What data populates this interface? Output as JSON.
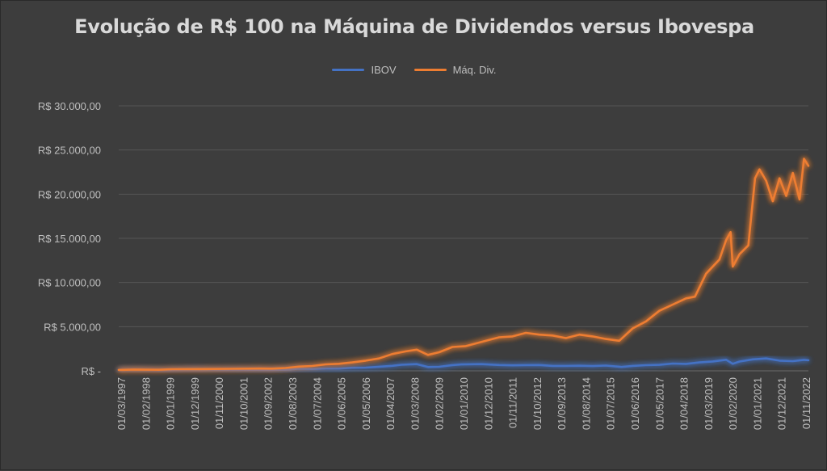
{
  "chart_data": {
    "type": "line",
    "title": "Evolução de R$ 100 na Máquina de Dividendos versus Ibovespa",
    "xlabel": "",
    "ylabel": "",
    "ylim": [
      0,
      30000
    ],
    "y_tick_values": [
      0,
      5000,
      10000,
      15000,
      20000,
      25000,
      30000
    ],
    "y_tick_labels": [
      "R$ -",
      "R$ 5.000,00",
      "R$ 10.000,00",
      "R$ 15.000,00",
      "R$ 20.000,00",
      "R$ 25.000,00",
      "R$ 30.000,00"
    ],
    "x_tick_labels": [
      "01/03/1997",
      "01/02/1998",
      "01/01/1999",
      "01/12/1999",
      "01/11/2000",
      "01/10/2001",
      "01/09/2002",
      "01/08/2003",
      "01/07/2004",
      "01/06/2005",
      "01/05/2006",
      "01/04/2007",
      "01/03/2008",
      "01/02/2009",
      "01/01/2010",
      "01/12/2010",
      "01/11/2011",
      "01/10/2012",
      "01/09/2013",
      "01/08/2014",
      "01/07/2015",
      "01/06/2016",
      "01/05/2017",
      "01/04/2018",
      "01/03/2019",
      "01/02/2020",
      "01/01/2021",
      "01/12/2021",
      "01/11/2022"
    ],
    "grid": true,
    "legend_position": "top",
    "series": [
      {
        "name": "IBOV",
        "color": "#4472c4",
        "x": [
          "1997-03",
          "1997-10",
          "1998-08",
          "1998-09",
          "1999-01",
          "1999-06",
          "2000-01",
          "2000-12",
          "2001-09",
          "2002-06",
          "2002-10",
          "2003-06",
          "2003-12",
          "2004-06",
          "2004-12",
          "2005-06",
          "2005-12",
          "2006-06",
          "2006-12",
          "2007-06",
          "2007-10",
          "2008-05",
          "2008-10",
          "2009-03",
          "2009-09",
          "2010-01",
          "2010-10",
          "2011-06",
          "2011-12",
          "2012-06",
          "2012-12",
          "2013-06",
          "2013-12",
          "2014-06",
          "2014-12",
          "2015-06",
          "2016-01",
          "2016-06",
          "2016-12",
          "2017-06",
          "2017-12",
          "2018-06",
          "2018-12",
          "2019-06",
          "2019-12",
          "2020-03",
          "2020-06",
          "2020-12",
          "2021-06",
          "2021-12",
          "2022-06",
          "2022-11",
          "2023-01"
        ],
        "values": [
          100,
          140,
          95,
          75,
          80,
          130,
          170,
          140,
          130,
          110,
          95,
          130,
          230,
          210,
          260,
          260,
          350,
          370,
          470,
          570,
          690,
          760,
          430,
          460,
          650,
          720,
          760,
          660,
          620,
          650,
          660,
          560,
          560,
          580,
          540,
          590,
          440,
          560,
          640,
          680,
          820,
          790,
          950,
          1060,
          1250,
          800,
          1050,
          1300,
          1400,
          1150,
          1100,
          1240,
          1200
        ]
      },
      {
        "name": "Máq. Div.",
        "color": "#ed7d31",
        "x": [
          "1997-03",
          "1997-10",
          "1998-09",
          "1999-03",
          "2000-06",
          "2001-06",
          "2002-06",
          "2002-12",
          "2003-06",
          "2003-12",
          "2004-06",
          "2004-12",
          "2005-06",
          "2005-12",
          "2006-06",
          "2006-12",
          "2007-06",
          "2007-12",
          "2008-05",
          "2008-10",
          "2009-03",
          "2009-09",
          "2010-03",
          "2010-09",
          "2011-03",
          "2011-06",
          "2011-12",
          "2012-06",
          "2012-12",
          "2013-06",
          "2013-12",
          "2014-06",
          "2014-12",
          "2015-06",
          "2015-12",
          "2016-06",
          "2016-12",
          "2017-06",
          "2017-12",
          "2018-06",
          "2018-10",
          "2019-03",
          "2019-09",
          "2019-12",
          "2020-02",
          "2020-03",
          "2020-06",
          "2020-10",
          "2021-01",
          "2021-03",
          "2021-06",
          "2021-09",
          "2021-12",
          "2022-03",
          "2022-06",
          "2022-09",
          "2022-11",
          "2023-01"
        ],
        "values": [
          100,
          150,
          120,
          180,
          200,
          230,
          260,
          250,
          320,
          480,
          550,
          730,
          800,
          950,
          1150,
          1400,
          1900,
          2200,
          2400,
          1800,
          2100,
          2700,
          2800,
          3200,
          3600,
          3800,
          3900,
          4300,
          4100,
          4000,
          3700,
          4100,
          3900,
          3600,
          3400,
          4800,
          5600,
          6800,
          7500,
          8200,
          8400,
          11000,
          12600,
          14800,
          15700,
          11800,
          13200,
          14200,
          21800,
          22800,
          21500,
          19200,
          21800,
          19800,
          22400,
          19400,
          24000,
          23200
        ]
      }
    ]
  }
}
